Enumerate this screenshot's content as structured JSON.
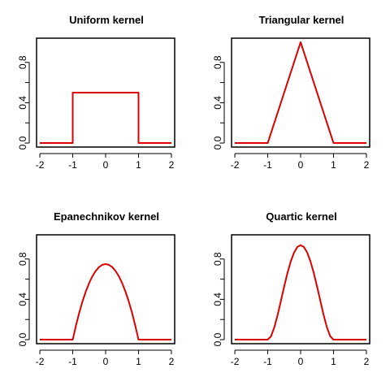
{
  "colors": {
    "curve": "#dd0000",
    "frame": "#000000"
  },
  "chart_data": [
    {
      "type": "line",
      "title": "Uniform kernel",
      "xlim": [
        -2.1,
        2.1
      ],
      "ylim": [
        -0.04,
        1.04
      ],
      "xticks": [
        -2,
        -1,
        0,
        1,
        2
      ],
      "xtick_labels": [
        "-2",
        "-1",
        "0",
        "1",
        "2"
      ],
      "yticks": [
        0,
        0.2,
        0.4,
        0.6,
        0.8
      ],
      "ytick_labels": [
        "0.0",
        "",
        "0.4",
        "",
        "0.8"
      ],
      "series": [
        {
          "x": [
            -2,
            -1,
            -1,
            1,
            1,
            2
          ],
          "y": [
            0,
            0,
            0.5,
            0.5,
            0,
            0
          ]
        }
      ]
    },
    {
      "type": "line",
      "title": "Triangular kernel",
      "xlim": [
        -2.1,
        2.1
      ],
      "ylim": [
        -0.04,
        1.04
      ],
      "xticks": [
        -2,
        -1,
        0,
        1,
        2
      ],
      "xtick_labels": [
        "-2",
        "-1",
        "0",
        "1",
        "2"
      ],
      "yticks": [
        0,
        0.2,
        0.4,
        0.6,
        0.8
      ],
      "ytick_labels": [
        "0.0",
        "",
        "0.4",
        "",
        "0.8"
      ],
      "series": [
        {
          "x": [
            -2,
            -1,
            0,
            1,
            2
          ],
          "y": [
            0,
            0,
            1,
            0,
            0
          ]
        }
      ]
    },
    {
      "type": "line",
      "title": "Epanechnikov kernel",
      "xlim": [
        -2.1,
        2.1
      ],
      "ylim": [
        -0.04,
        1.04
      ],
      "xticks": [
        -2,
        -1,
        0,
        1,
        2
      ],
      "xtick_labels": [
        "-2",
        "-1",
        "0",
        "1",
        "2"
      ],
      "yticks": [
        0,
        0.2,
        0.4,
        0.6,
        0.8
      ],
      "ytick_labels": [
        "0.0",
        "",
        "0.4",
        "",
        "0.8"
      ],
      "series": [
        {
          "x": [
            -2,
            -1,
            -0.9,
            -0.8,
            -0.7,
            -0.6,
            -0.5,
            -0.4,
            -0.3,
            -0.2,
            -0.1,
            0,
            0.1,
            0.2,
            0.3,
            0.4,
            0.5,
            0.6,
            0.7,
            0.8,
            0.9,
            1,
            2
          ],
          "y": [
            0,
            0,
            0.1425,
            0.27,
            0.3825,
            0.48,
            0.5625,
            0.63,
            0.6825,
            0.72,
            0.7425,
            0.75,
            0.7425,
            0.72,
            0.6825,
            0.63,
            0.5625,
            0.48,
            0.3825,
            0.27,
            0.1425,
            0,
            0
          ]
        }
      ]
    },
    {
      "type": "line",
      "title": "Quartic kernel",
      "xlim": [
        -2.1,
        2.1
      ],
      "ylim": [
        -0.04,
        1.04
      ],
      "xticks": [
        -2,
        -1,
        0,
        1,
        2
      ],
      "xtick_labels": [
        "-2",
        "-1",
        "0",
        "1",
        "2"
      ],
      "yticks": [
        0,
        0.2,
        0.4,
        0.6,
        0.8
      ],
      "ytick_labels": [
        "0.0",
        "",
        "0.4",
        "",
        "0.8"
      ],
      "series": [
        {
          "x": [
            -2,
            -1,
            -0.9,
            -0.8,
            -0.7,
            -0.6,
            -0.5,
            -0.4,
            -0.3,
            -0.2,
            -0.1,
            0,
            0.1,
            0.2,
            0.3,
            0.4,
            0.5,
            0.6,
            0.7,
            0.8,
            0.9,
            1,
            2
          ],
          "y": [
            0,
            0,
            0.0335,
            0.1215,
            0.2438,
            0.384,
            0.5273,
            0.6615,
            0.7763,
            0.864,
            0.9188,
            0.9375,
            0.9188,
            0.864,
            0.7763,
            0.6615,
            0.5273,
            0.384,
            0.2438,
            0.1215,
            0.0335,
            0,
            0
          ]
        }
      ]
    }
  ]
}
